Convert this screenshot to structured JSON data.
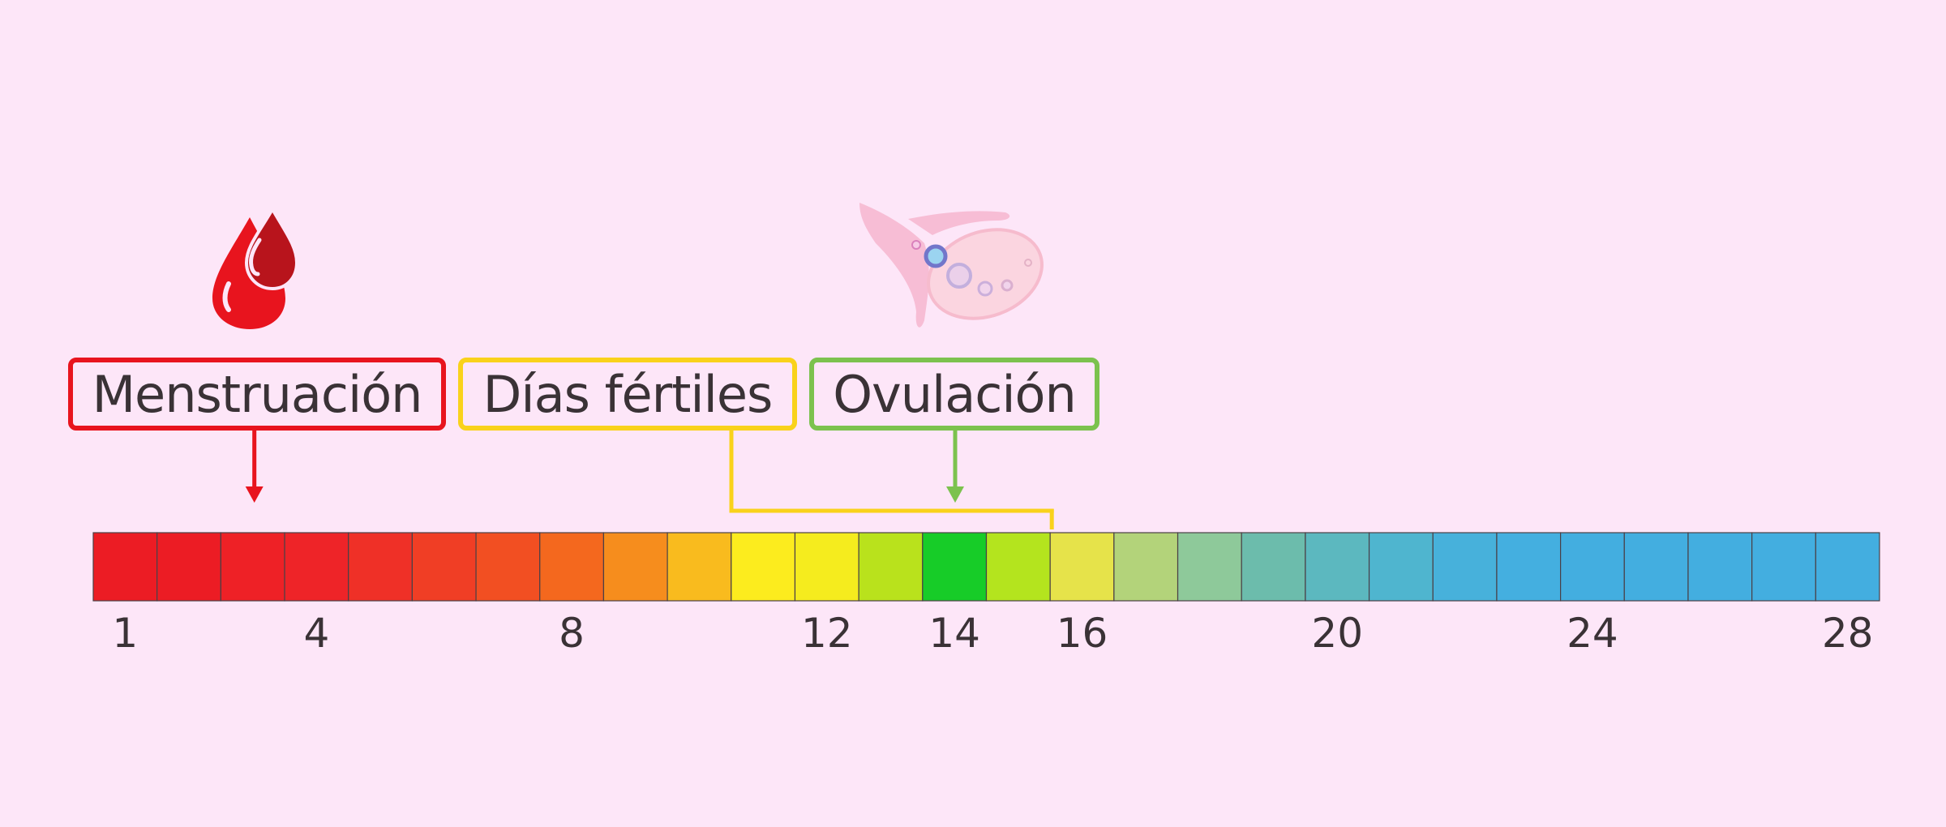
{
  "labels": {
    "menstruacion": {
      "text": "Menstruación",
      "color": "#e8141e"
    },
    "fertiles": {
      "text": "Días fértiles",
      "color": "#f9d21b"
    },
    "ovulacion": {
      "text": "Ovulación",
      "color": "#7cc24e"
    }
  },
  "cycle": {
    "total_days": 28,
    "menstruation_day": 3,
    "fertile_start_day": 11,
    "fertile_end_day": 16,
    "ovulation_day": 14,
    "day_labels": [
      "1",
      "4",
      "8",
      "12",
      "14",
      "16",
      "20",
      "24",
      "28"
    ],
    "day_colors": [
      "#ec1c24",
      "#ec1c24",
      "#ee2126",
      "#ee2428",
      "#ef3027",
      "#f03e25",
      "#f24f22",
      "#f4681e",
      "#f68d1d",
      "#f9bb1e",
      "#fcec1e",
      "#f5ec1e",
      "#b9e21c",
      "#17cc28",
      "#b4e41e",
      "#e6e34a",
      "#b3d37a",
      "#8ec99a",
      "#6cbcac",
      "#5cb8bf",
      "#4fb5cf",
      "#47b1db",
      "#44afe0",
      "#43aee0",
      "#43aee0",
      "#43aee0",
      "#43aee0",
      "#43aee0"
    ]
  },
  "icons": {
    "blood_drop": "blood-drops-icon",
    "ovary": "ovary-icon"
  }
}
